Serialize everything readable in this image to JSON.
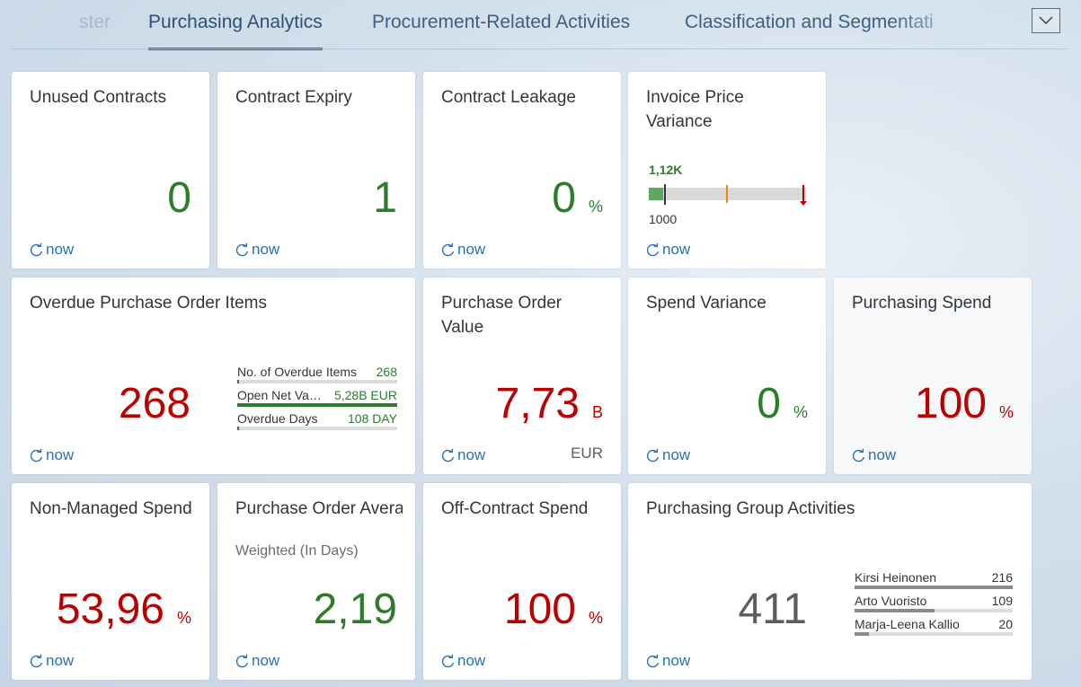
{
  "tabs": [
    {
      "label": "ster",
      "state": "faded"
    },
    {
      "label": "Purchasing Analytics",
      "state": "active"
    },
    {
      "label": "Procurement-Related Activities",
      "state": "normal"
    },
    {
      "label": "Classification and Segmentati",
      "state": "truncated"
    }
  ],
  "overflow_icon": "chevron-down-icon",
  "refresh_icon": "refresh-icon",
  "colors": {
    "positive": "#2b7d2b",
    "negative": "#bb0000",
    "neutral": "#5b5d60",
    "link": "#2b6fb0",
    "active_tab": "#346187"
  },
  "tiles": {
    "unused_contracts": {
      "title": "Unused Contracts",
      "value": "0",
      "refresh": "now"
    },
    "contract_expiry": {
      "title": "Contract Expiry",
      "value": "1",
      "refresh": "now"
    },
    "contract_leakage": {
      "title": "Contract Leakage",
      "value": "0",
      "unit": "%",
      "refresh": "now"
    },
    "invoice_price_variance": {
      "title": "Invoice Price Variance",
      "actual_label": "1,12K",
      "target_label": "1000",
      "refresh": "now"
    },
    "overdue_po_items": {
      "title": "Overdue Purchase Order Items",
      "value": "268",
      "refresh": "now",
      "items": [
        {
          "label": "No. of Overdue Items",
          "value": "268",
          "fill": 0
        },
        {
          "label": "Open Net Va…",
          "value": "5,28B EUR",
          "fill": 1.0
        },
        {
          "label": "Overdue Days",
          "value": "108 DAY",
          "fill": 0
        }
      ]
    },
    "po_value": {
      "title": "Purchase Order Value",
      "value": "7,73",
      "unit": "B",
      "footer": "EUR",
      "refresh": "now"
    },
    "spend_variance": {
      "title": "Spend Variance",
      "value": "0",
      "unit": "%",
      "refresh": "now"
    },
    "purchasing_spend": {
      "title": "Purchasing Spend",
      "value": "100",
      "unit": "%",
      "refresh": "now"
    },
    "non_managed_spend": {
      "title": "Non-Managed Spend",
      "value": "53,96",
      "unit": "%",
      "refresh": "now"
    },
    "po_avg_delivery": {
      "title": "Purchase Order Average Delivery…",
      "subtitle": "Weighted (In Days)",
      "value": "2,19",
      "refresh": "now"
    },
    "off_contract_spend": {
      "title": "Off-Contract Spend",
      "value": "100",
      "unit": "%",
      "refresh": "now"
    },
    "purchasing_group_activities": {
      "title": "Purchasing Group Activities",
      "value": "411",
      "refresh": "now",
      "items": [
        {
          "label": "Kirsi Heinonen",
          "value": "216"
        },
        {
          "label": "Arto Vuoristo",
          "value": "109"
        },
        {
          "label": "Marja-Leena Kallio",
          "value": "20"
        }
      ]
    }
  }
}
